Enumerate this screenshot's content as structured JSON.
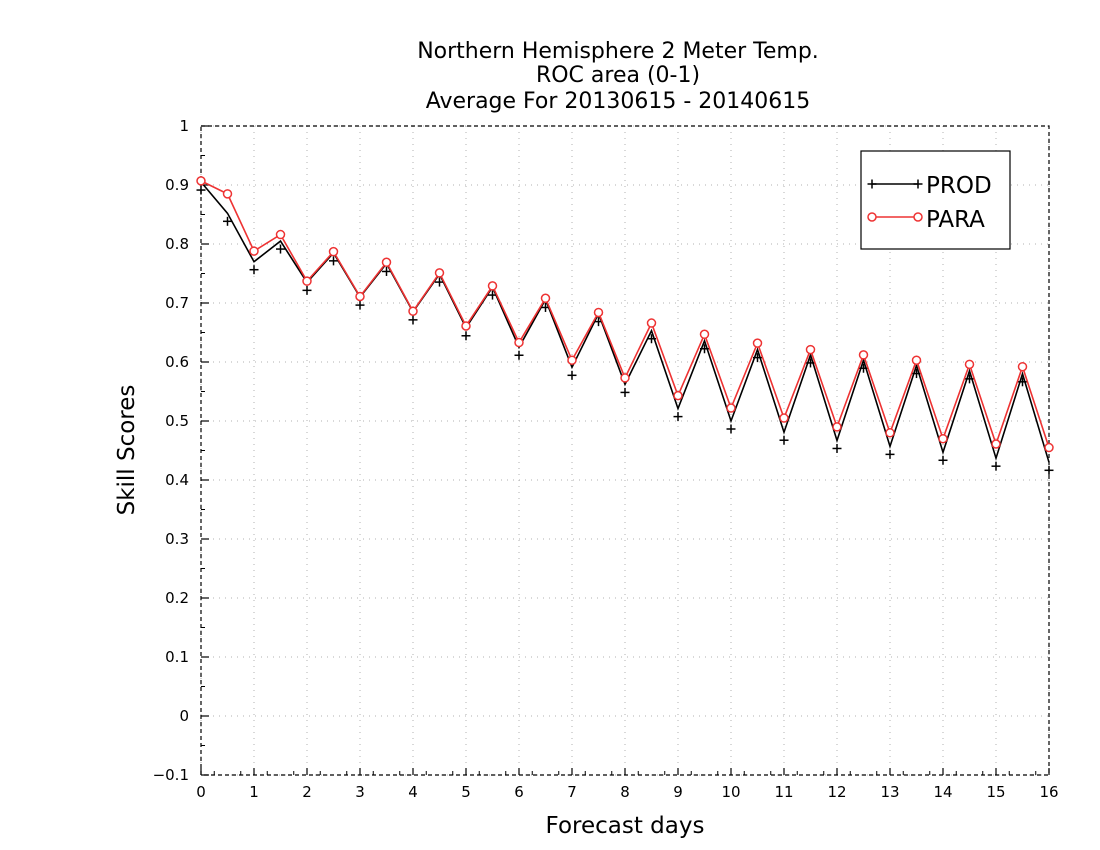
{
  "chart_data": {
    "type": "line",
    "title": [
      "Northern Hemisphere 2 Meter Temp.",
      "ROC area (0-1)",
      "Average For 20130615 - 20140615"
    ],
    "xlabel": "Forecast days",
    "ylabel": "Skill Scores",
    "xlim": [
      0,
      16
    ],
    "ylim": [
      -0.1,
      1
    ],
    "xticks": [
      "0",
      "1",
      "2",
      "3",
      "4",
      "5",
      "6",
      "7",
      "8",
      "9",
      "10",
      "11",
      "12",
      "13",
      "14",
      "15",
      "16"
    ],
    "yticks": [
      "−0.1",
      "0",
      "0.1",
      "0.2",
      "0.3",
      "0.4",
      "0.5",
      "0.6",
      "0.7",
      "0.8",
      "0.9",
      "1"
    ],
    "grid": true,
    "legend_position": "top-right",
    "x": [
      0,
      0.5,
      1,
      1.5,
      2,
      2.5,
      3,
      3.5,
      4,
      4.5,
      5,
      5.5,
      6,
      6.5,
      7,
      7.5,
      8,
      8.5,
      9,
      9.5,
      10,
      10.5,
      11,
      11.5,
      12,
      12.5,
      13,
      13.5,
      14,
      14.5,
      15,
      15.5,
      16
    ],
    "series": [
      {
        "name": "PROD",
        "color": "#000000",
        "marker": "plus",
        "values": [
          0.905,
          0.852,
          0.77,
          0.805,
          0.735,
          0.785,
          0.71,
          0.767,
          0.685,
          0.749,
          0.658,
          0.727,
          0.625,
          0.706,
          0.591,
          0.682,
          0.562,
          0.653,
          0.521,
          0.636,
          0.5,
          0.621,
          0.481,
          0.612,
          0.467,
          0.603,
          0.457,
          0.594,
          0.447,
          0.585,
          0.437,
          0.58,
          0.43
        ]
      },
      {
        "name": "PARA",
        "color": "#ee3333",
        "marker": "circle",
        "values": [
          0.907,
          0.885,
          0.788,
          0.816,
          0.737,
          0.787,
          0.711,
          0.769,
          0.686,
          0.751,
          0.661,
          0.729,
          0.633,
          0.708,
          0.603,
          0.684,
          0.573,
          0.666,
          0.543,
          0.647,
          0.522,
          0.632,
          0.505,
          0.621,
          0.49,
          0.612,
          0.48,
          0.603,
          0.47,
          0.596,
          0.461,
          0.592,
          0.455
        ]
      }
    ]
  }
}
